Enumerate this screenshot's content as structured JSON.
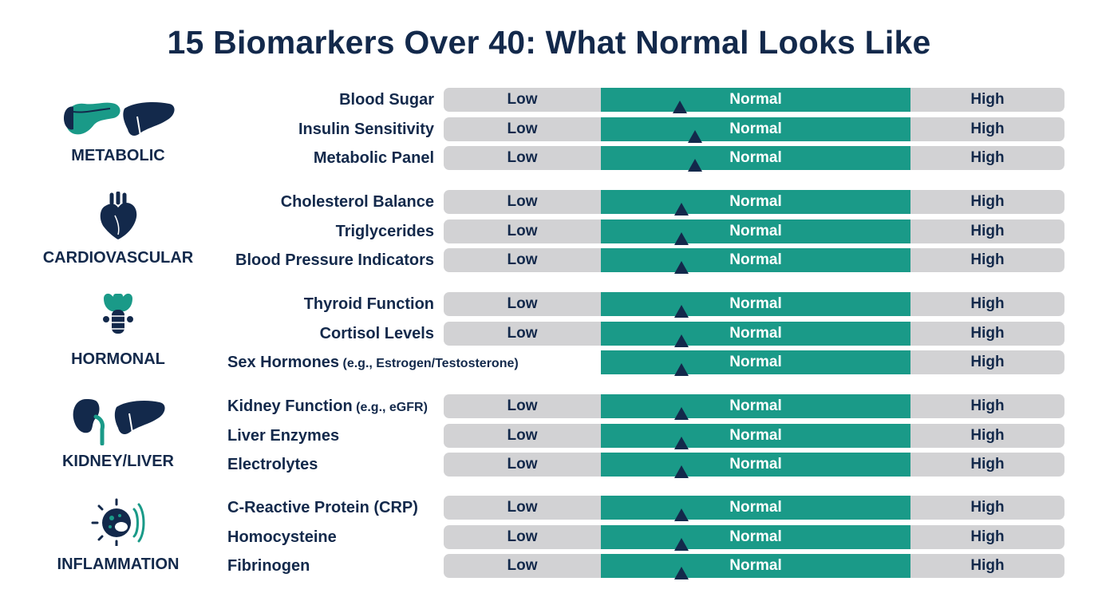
{
  "title": "15 Biomarkers Over 40: What Normal Looks Like",
  "colors": {
    "navy": "#13294b",
    "teal": "#1a9a88",
    "gray": "#d2d2d4"
  },
  "chart_data": {
    "type": "range-bar",
    "title": "15 Biomarkers Over 40: What Normal Looks Like",
    "zones": [
      "Low",
      "Normal",
      "High"
    ],
    "marker_position_unit": "fraction along bar (0 = left end, 1 = right end)",
    "categories": [
      {
        "name": "METABOLIC",
        "icon": "pancreas-liver-icon",
        "rows": [
          {
            "label": "Blood Sugar",
            "sub": "",
            "marker": 0.38,
            "zones_shown": [
              "Low",
              "Normal",
              "High"
            ]
          },
          {
            "label": "Insulin Sensitivity",
            "sub": "",
            "marker": 0.405,
            "zones_shown": [
              "Low",
              "Normal",
              "High"
            ]
          },
          {
            "label": "Metabolic Panel",
            "sub": "",
            "marker": 0.405,
            "zones_shown": [
              "Low",
              "Normal",
              "High"
            ]
          }
        ]
      },
      {
        "name": "CARDIOVASCULAR",
        "icon": "heart-icon",
        "rows": [
          {
            "label": "Cholesterol Balance",
            "sub": "",
            "marker": 0.383,
            "zones_shown": [
              "Low",
              "Normal",
              "High"
            ]
          },
          {
            "label": "Triglycerides",
            "sub": "",
            "marker": 0.383,
            "zones_shown": [
              "Low",
              "Normal",
              "High"
            ]
          },
          {
            "label": "Blood Pressure Indicators",
            "sub": "",
            "marker": 0.383,
            "zones_shown": [
              "Low",
              "Normal",
              "High"
            ]
          }
        ]
      },
      {
        "name": "HORMONAL",
        "icon": "thyroid-icon",
        "rows": [
          {
            "label": "Thyroid Function",
            "sub": "",
            "marker": 0.383,
            "zones_shown": [
              "Low",
              "Normal",
              "High"
            ]
          },
          {
            "label": "Cortisol Levels",
            "sub": "",
            "marker": 0.383,
            "zones_shown": [
              "Low",
              "Normal",
              "High"
            ]
          },
          {
            "label": "Sex Hormones",
            "sub": "(e.g., Estrogen/Testosterone)",
            "marker": 0.383,
            "zones_shown": [
              "Normal",
              "High"
            ]
          }
        ]
      },
      {
        "name": "KIDNEY/LIVER",
        "icon": "kidney-liver-icon",
        "rows": [
          {
            "label": "Kidney Function",
            "sub": "(e.g., eGFR)",
            "marker": 0.383,
            "zones_shown": [
              "Low",
              "Normal",
              "High"
            ]
          },
          {
            "label": "Liver Enzymes",
            "sub": "",
            "marker": 0.383,
            "zones_shown": [
              "Low",
              "Normal",
              "High"
            ]
          },
          {
            "label": "Electrolytes",
            "sub": "",
            "marker": 0.383,
            "zones_shown": [
              "Low",
              "Normal",
              "High"
            ]
          }
        ]
      },
      {
        "name": "INFLAMMATION",
        "icon": "inflammation-cell-icon",
        "rows": [
          {
            "label": "C-Reactive Protein (CRP)",
            "sub": "",
            "marker": 0.383,
            "zones_shown": [
              "Low",
              "Normal",
              "High"
            ]
          },
          {
            "label": "Homocysteine",
            "sub": "",
            "marker": 0.383,
            "zones_shown": [
              "Low",
              "Normal",
              "High"
            ]
          },
          {
            "label": "Fibrinogen",
            "sub": "",
            "marker": 0.383,
            "zones_shown": [
              "Low",
              "Normal",
              "High"
            ]
          }
        ]
      }
    ]
  }
}
